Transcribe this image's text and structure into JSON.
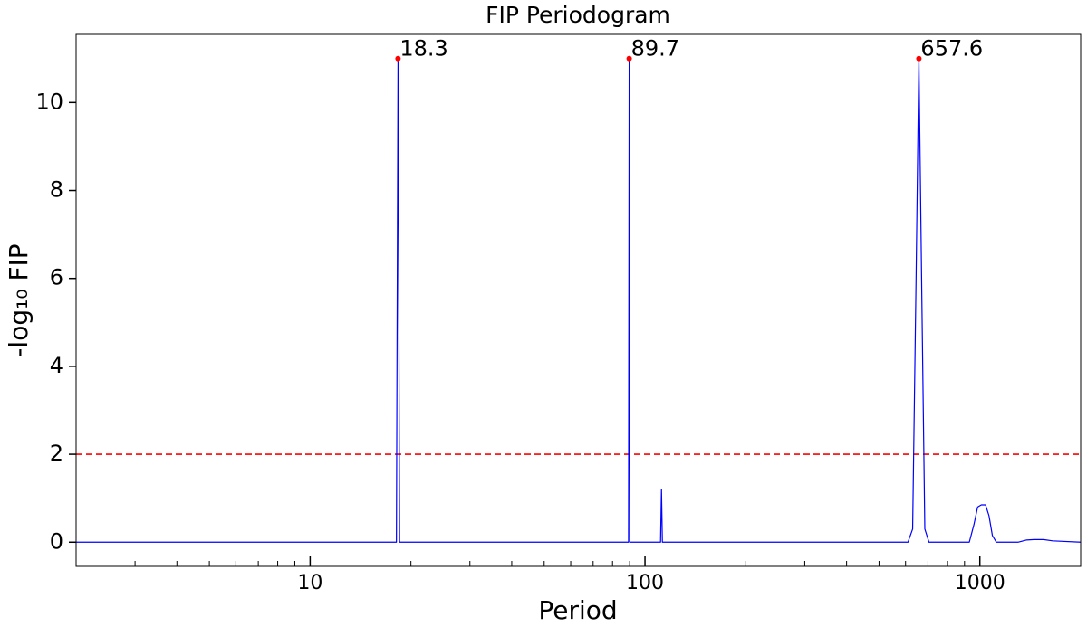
{
  "chart_data": {
    "type": "line",
    "title": "FIP Periodogram",
    "xlabel": "Period",
    "ylabel": "-log₁₀ FIP",
    "xscale": "log",
    "xlim": [
      2,
      2000
    ],
    "ylim": [
      -0.55,
      11.55
    ],
    "xticks": [
      10,
      100,
      1000
    ],
    "xminorticks": [
      3,
      4,
      5,
      6,
      7,
      8,
      9,
      20,
      30,
      40,
      50,
      60,
      70,
      80,
      90,
      200,
      300,
      400,
      500,
      600,
      700,
      800,
      900
    ],
    "yticks": [
      0,
      2,
      4,
      6,
      8,
      10
    ],
    "series": [
      {
        "name": "FIP",
        "color": "#0000ff",
        "x": [
          2,
          18.1,
          18.3,
          18.5,
          89.3,
          89.7,
          90.1,
          111.3,
          112,
          112.7,
          610,
          630,
          645,
          657.6,
          670,
          685,
          705,
          930,
          960,
          985,
          1010,
          1040,
          1065,
          1090,
          1120,
          1300,
          1380,
          1450,
          1550,
          1650,
          2000
        ],
        "values": [
          0,
          0,
          11,
          0,
          0,
          11,
          0,
          0,
          1.2,
          0,
          0,
          0.3,
          6,
          11,
          6,
          0.3,
          0,
          0,
          0.4,
          0.8,
          0.85,
          0.85,
          0.6,
          0.15,
          0,
          0,
          0.05,
          0.06,
          0.06,
          0.03,
          0
        ]
      }
    ],
    "peaks": {
      "color": "#ff0000",
      "x": [
        18.3,
        89.7,
        657.6
      ],
      "values": [
        11,
        11,
        11
      ],
      "labels": [
        "18.3",
        "89.7",
        "657.6"
      ]
    },
    "hlines": [
      {
        "y": 2,
        "color": "#ff0000",
        "style": "dashed"
      }
    ]
  }
}
